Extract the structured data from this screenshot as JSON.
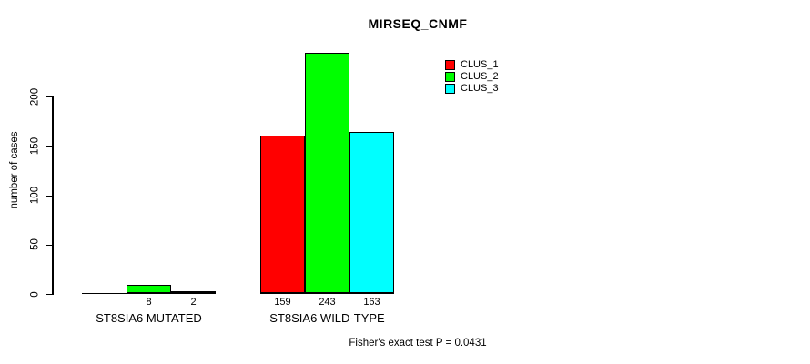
{
  "chart_data": {
    "type": "bar",
    "title": "MIRSEQ_CNMF",
    "xlabel": "",
    "ylabel": "number of cases",
    "footnote": "Fisher's exact test P = 0.0431",
    "categories": [
      "ST8SIA6 MUTATED",
      "ST8SIA6 WILD-TYPE"
    ],
    "series": [
      {
        "name": "CLUS_1",
        "color": "#ff0000",
        "values": [
          0,
          159
        ],
        "bar_labels": [
          "",
          "159"
        ]
      },
      {
        "name": "CLUS_2",
        "color": "#00ff00",
        "values": [
          8,
          243
        ],
        "bar_labels": [
          "8",
          "243"
        ]
      },
      {
        "name": "CLUS_3",
        "color": "#00ffff",
        "values": [
          2,
          163
        ],
        "bar_labels": [
          "2",
          "163"
        ]
      }
    ],
    "yticks": [
      0,
      50,
      100,
      150,
      200
    ],
    "ylim": [
      0,
      255
    ],
    "grid": false,
    "legend_position": "top-right",
    "bar_border_color": "#000000",
    "axis_color": "#000000",
    "background_color": "#ffffff"
  }
}
